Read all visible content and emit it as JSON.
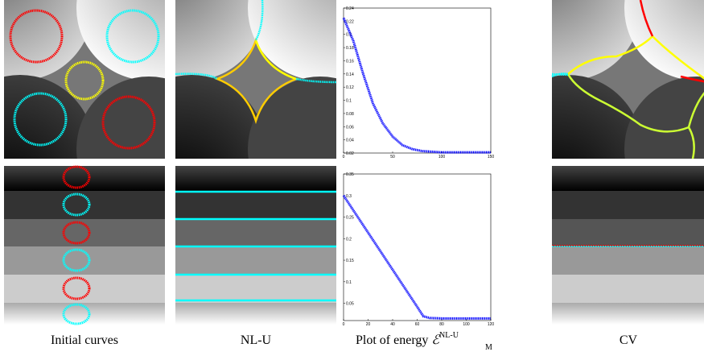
{
  "chart_data": [
    {
      "type": "line",
      "color": "#0000ff",
      "x": [
        0,
        10,
        20,
        30,
        40,
        50,
        60,
        70,
        80,
        90,
        100,
        110,
        120,
        130,
        140,
        150
      ],
      "values": [
        0.225,
        0.19,
        0.14,
        0.095,
        0.065,
        0.045,
        0.032,
        0.026,
        0.023,
        0.022,
        0.021,
        0.021,
        0.021,
        0.021,
        0.021,
        0.021
      ],
      "xlim": [
        0,
        150
      ],
      "xticks": [
        0,
        50,
        100,
        150
      ],
      "ylim": [
        0.02,
        0.24
      ],
      "yticks": [
        0.02,
        0.04,
        0.06,
        0.08,
        0.1,
        0.12,
        0.14,
        0.16,
        0.18,
        0.2,
        0.22,
        0.24
      ]
    },
    {
      "type": "line",
      "color": "#0000ff",
      "x": [
        0,
        10,
        20,
        30,
        40,
        50,
        60,
        65,
        70,
        80,
        90,
        100,
        110,
        120
      ],
      "values": [
        0.3,
        0.257,
        0.214,
        0.171,
        0.128,
        0.085,
        0.042,
        0.02,
        0.016,
        0.015,
        0.015,
        0.015,
        0.015,
        0.015
      ],
      "xlim": [
        0,
        120
      ],
      "xticks": [
        0,
        20,
        40,
        60,
        80,
        100,
        120
      ],
      "ylim": [
        0.01,
        0.35
      ],
      "yticks": [
        0.05,
        0.1,
        0.15,
        0.2,
        0.25,
        0.3,
        0.35
      ]
    }
  ],
  "captions": {
    "initial": "Initial curves",
    "nlu": "NL-U",
    "energy": "Plot of energy ",
    "energy_symbol": "ℰ",
    "energy_sub": "M",
    "energy_sup": "NL-U",
    "cv": "CV"
  }
}
